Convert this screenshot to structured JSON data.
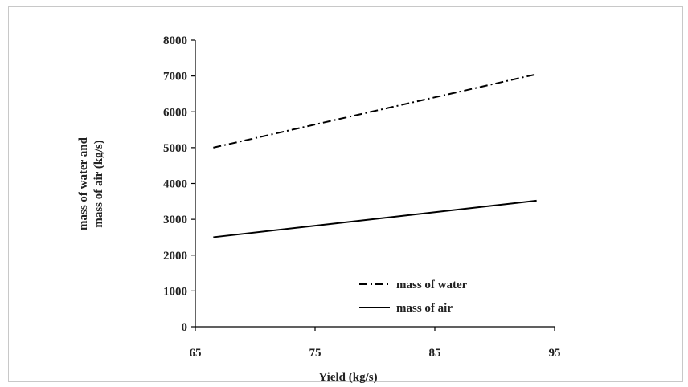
{
  "chart_data": {
    "type": "line",
    "xlabel": "Yield (kg/s)",
    "ylabel_lines": [
      "mass of water and",
      "mass of  air (kg/s)"
    ],
    "xlim": [
      65,
      95
    ],
    "ylim": [
      0,
      8000
    ],
    "x_ticks": [
      65,
      75,
      85,
      95
    ],
    "y_ticks": [
      0,
      1000,
      2000,
      3000,
      4000,
      5000,
      6000,
      7000,
      8000
    ],
    "grid": false,
    "legend_position": "bottom-right",
    "series": [
      {
        "name": "mass of water",
        "style": "dash-dot",
        "color": "#000000",
        "x": [
          66.5,
          93.5
        ],
        "y": [
          5000,
          7050
        ]
      },
      {
        "name": "mass of air",
        "style": "solid",
        "color": "#000000",
        "x": [
          66.5,
          93.5
        ],
        "y": [
          2500,
          3520
        ]
      }
    ]
  }
}
